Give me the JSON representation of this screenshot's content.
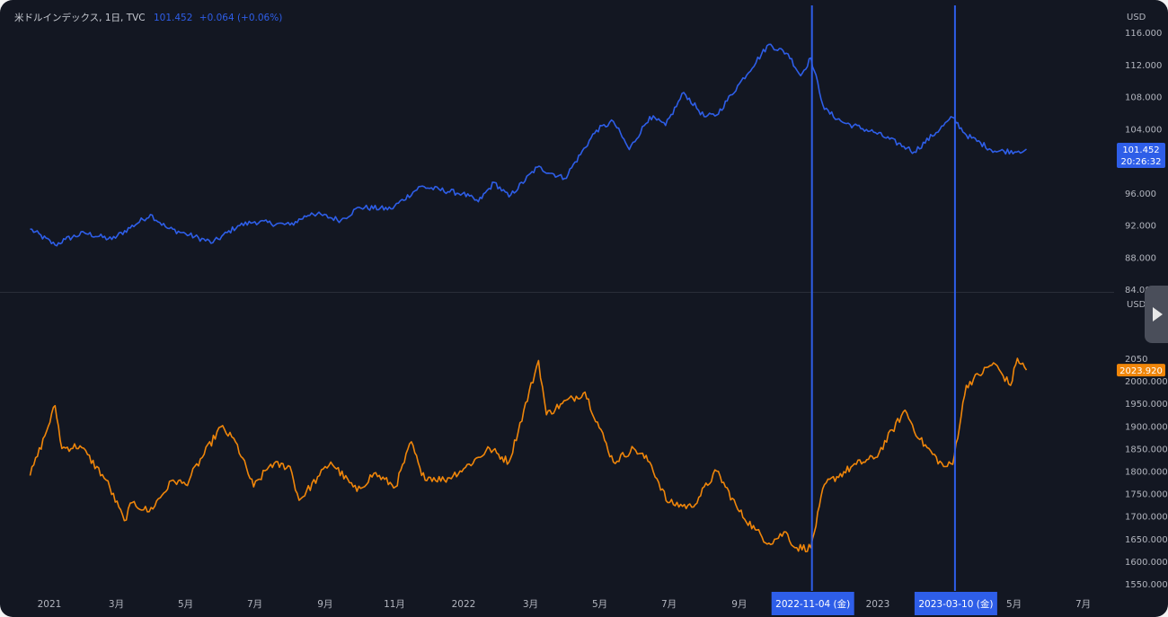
{
  "legend": {
    "symbol": "米ドルインデックス, 1日, TVC",
    "value": "101.452",
    "change": "+0.064 (+0.06%)"
  },
  "colors": {
    "background": "#131722",
    "dxy_line": "#2e5ee8",
    "gold_line": "#f0860a",
    "marker": "#2e5ee8",
    "axis_text": "#b2b5be"
  },
  "markers": [
    {
      "date": "2022-11-04",
      "label": "2022-11-04 (金)"
    },
    {
      "date": "2023-03-10",
      "label": "2023-03-10 (金)"
    }
  ],
  "x_axis_labels": [
    {
      "date": "2021-01-01",
      "label": "2021"
    },
    {
      "date": "2021-03-01",
      "label": "3月"
    },
    {
      "date": "2021-05-01",
      "label": "5月"
    },
    {
      "date": "2021-07-01",
      "label": "7月"
    },
    {
      "date": "2021-09-01",
      "label": "9月"
    },
    {
      "date": "2021-11-01",
      "label": "11月"
    },
    {
      "date": "2022-01-01",
      "label": "2022"
    },
    {
      "date": "2022-03-01",
      "label": "3月"
    },
    {
      "date": "2022-05-01",
      "label": "5月"
    },
    {
      "date": "2022-07-01",
      "label": "7月"
    },
    {
      "date": "2022-09-01",
      "label": "9月"
    },
    {
      "date": "2023-01-01",
      "label": "2023"
    },
    {
      "date": "2023-05-01",
      "label": "5月"
    },
    {
      "date": "2023-07-01",
      "label": "7月"
    }
  ],
  "nav_icon": "play-arrow-icon",
  "chart_data": [
    {
      "type": "line",
      "series": [
        {
          "name": "米ドルインデックス"
        }
      ],
      "unit": "USD",
      "y_ticks": [
        "116.000",
        "112.000",
        "108.000",
        "104.000",
        "96.000",
        "92.000",
        "88.000",
        "84.000"
      ],
      "ylim": [
        84,
        116
      ],
      "last_value_label": "101.452",
      "last_time_label": "20:26:32",
      "x": [
        "2020-12-15",
        "2021-01-06",
        "2021-01-15",
        "2021-02-01",
        "2021-02-25",
        "2021-03-31",
        "2021-04-15",
        "2021-05-01",
        "2021-05-25",
        "2021-06-16",
        "2021-07-01",
        "2021-08-01",
        "2021-08-20",
        "2021-09-15",
        "2021-10-01",
        "2021-10-29",
        "2021-11-24",
        "2021-12-31",
        "2022-01-14",
        "2022-01-28",
        "2022-02-10",
        "2022-03-07",
        "2022-03-31",
        "2022-04-28",
        "2022-05-13",
        "2022-05-27",
        "2022-06-14",
        "2022-06-28",
        "2022-07-14",
        "2022-08-01",
        "2022-08-12",
        "2022-09-01",
        "2022-09-27",
        "2022-10-14",
        "2022-10-25",
        "2022-11-03",
        "2022-11-15",
        "2022-12-01",
        "2022-12-30",
        "2023-01-27",
        "2023-02-02",
        "2023-03-08",
        "2023-03-20",
        "2023-04-14",
        "2023-05-05",
        "2023-05-12"
      ],
      "y": [
        91.5,
        89.5,
        90.2,
        91.0,
        90.2,
        93.3,
        91.6,
        90.9,
        89.8,
        91.9,
        92.4,
        92.0,
        93.5,
        92.6,
        94.2,
        94.0,
        96.8,
        95.9,
        94.9,
        97.3,
        95.5,
        99.2,
        97.8,
        103.8,
        104.9,
        101.4,
        105.5,
        104.4,
        108.5,
        105.5,
        105.7,
        109.6,
        114.5,
        113.3,
        110.6,
        112.8,
        106.4,
        104.8,
        103.5,
        101.6,
        101.1,
        105.4,
        103.2,
        101.2,
        101.2,
        101.452
      ]
    },
    {
      "type": "line",
      "series": [
        {
          "name": ""
        }
      ],
      "unit": "USD",
      "y_ticks": [
        "2050",
        "2000.000",
        "1950.000",
        "1900.000",
        "1850.000",
        "1800.000",
        "1750.000",
        "1700.000",
        "1650.000",
        "1600.000",
        "1550.000"
      ],
      "ylim": [
        1550,
        2080
      ],
      "last_value_label": "2023.920",
      "x": [
        "2020-12-15",
        "2020-12-28",
        "2021-01-06",
        "2021-01-12",
        "2021-01-28",
        "2021-02-20",
        "2021-03-08",
        "2021-03-15",
        "2021-03-30",
        "2021-04-20",
        "2021-05-01",
        "2021-06-01",
        "2021-06-14",
        "2021-06-30",
        "2021-07-15",
        "2021-08-01",
        "2021-08-09",
        "2021-08-27",
        "2021-09-06",
        "2021-09-29",
        "2021-10-14",
        "2021-11-02",
        "2021-11-16",
        "2021-11-25",
        "2021-12-15",
        "2022-01-01",
        "2022-01-24",
        "2022-02-10",
        "2022-03-08",
        "2022-03-15",
        "2022-03-29",
        "2022-04-18",
        "2022-05-13",
        "2022-05-31",
        "2022-06-14",
        "2022-06-30",
        "2022-07-21",
        "2022-08-12",
        "2022-09-01",
        "2022-09-15",
        "2022-09-27",
        "2022-10-12",
        "2022-10-20",
        "2022-11-03",
        "2022-11-15",
        "2022-12-13",
        "2022-12-30",
        "2023-01-25",
        "2023-02-07",
        "2023-02-28",
        "2023-03-08",
        "2023-03-20",
        "2023-04-13",
        "2023-04-28",
        "2023-05-04",
        "2023-05-12"
      ],
      "y": [
        1790,
        1878,
        1945,
        1850,
        1856,
        1780,
        1690,
        1730,
        1710,
        1780,
        1770,
        1898,
        1865,
        1765,
        1815,
        1810,
        1735,
        1790,
        1820,
        1755,
        1795,
        1765,
        1865,
        1790,
        1780,
        1805,
        1850,
        1820,
        2045,
        1925,
        1950,
        1975,
        1820,
        1850,
        1820,
        1730,
        1720,
        1800,
        1710,
        1670,
        1640,
        1665,
        1630,
        1630,
        1770,
        1815,
        1830,
        1935,
        1870,
        1810,
        1815,
        1990,
        2040,
        1990,
        2050,
        2023.92
      ]
    }
  ]
}
